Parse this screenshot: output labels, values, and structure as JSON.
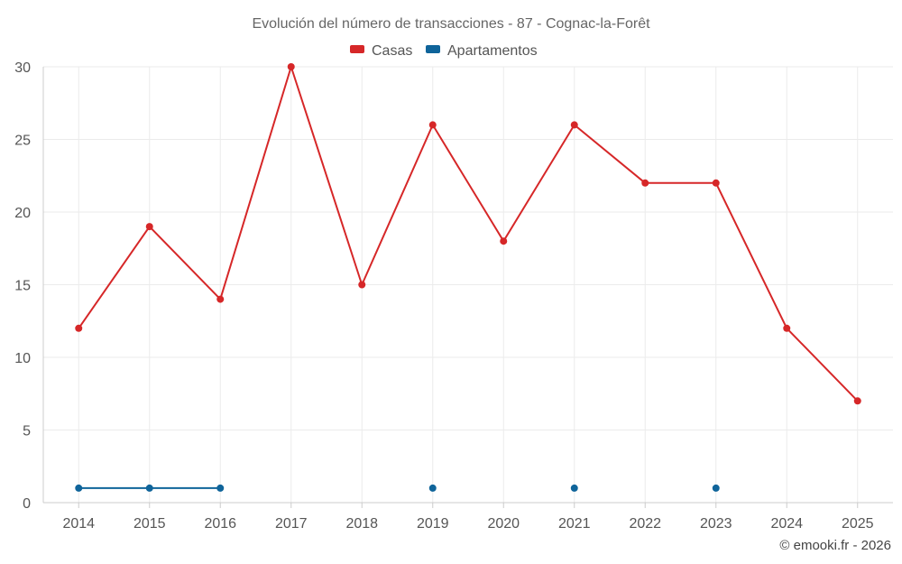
{
  "chart_data": {
    "type": "line",
    "title": "Evolución del número de transacciones - 87 - Cognac-la-Forêt",
    "x": [
      "2014",
      "2015",
      "2016",
      "2017",
      "2018",
      "2019",
      "2020",
      "2021",
      "2022",
      "2023",
      "2024",
      "2025"
    ],
    "ylim": [
      0,
      30
    ],
    "yticks": [
      0,
      5,
      10,
      15,
      20,
      25,
      30
    ],
    "grid": true,
    "legend_position": "top-center",
    "series": [
      {
        "name": "Casas",
        "color": "#d62728",
        "values": [
          12,
          19,
          14,
          30,
          15,
          26,
          18,
          26,
          22,
          22,
          12,
          7
        ]
      },
      {
        "name": "Apartamentos",
        "color": "#0f649a",
        "values": [
          1,
          1,
          1,
          null,
          null,
          1,
          null,
          1,
          null,
          1,
          null,
          null
        ]
      }
    ],
    "credit": "© emooki.fr - 2026"
  }
}
